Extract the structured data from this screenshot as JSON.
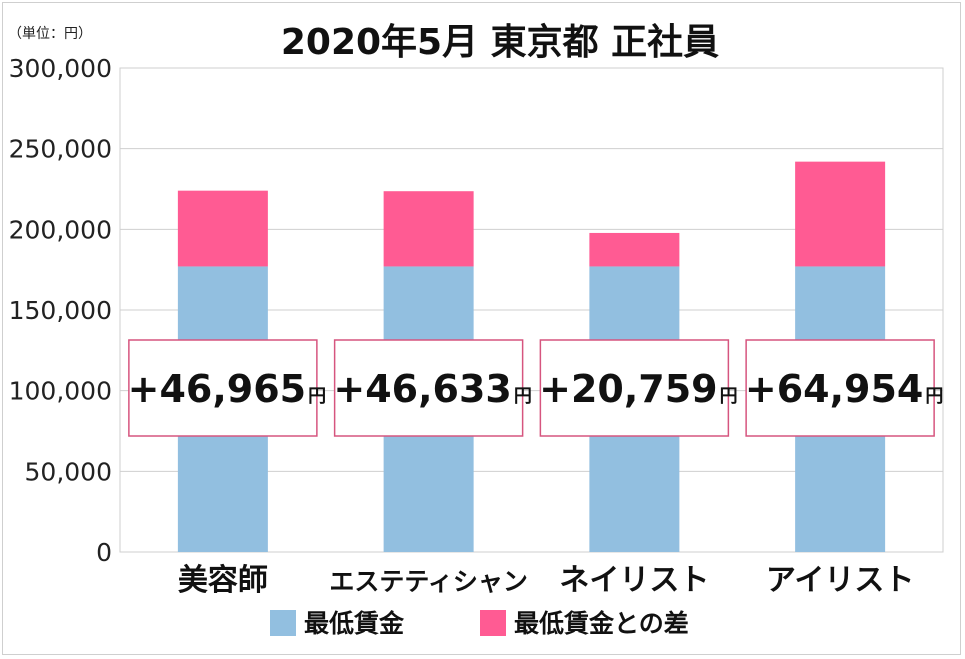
{
  "chart_data": {
    "type": "bar",
    "stacked": true,
    "title": "2020年5月 東京都 正社員",
    "unit_label": "（単位：円）",
    "categories": [
      "美容師",
      "エステティシャン",
      "ネイリスト",
      "アイリスト"
    ],
    "series": [
      {
        "name": "最低賃金",
        "values": [
          177000,
          177000,
          177000,
          177000
        ],
        "color": "#92bfe0"
      },
      {
        "name": "最低賃金との差",
        "values": [
          46965,
          46633,
          20759,
          64954
        ],
        "color": "#ff5b93"
      }
    ],
    "callouts": [
      "+46,965",
      "+46,633",
      "+20,759",
      "+64,954"
    ],
    "callout_unit": "円",
    "ylim": [
      0,
      300000
    ],
    "yticks": [
      0,
      50000,
      100000,
      150000,
      200000,
      250000,
      300000
    ],
    "ytick_labels": [
      "0",
      "50,000",
      "100,000",
      "150,000",
      "200,000",
      "250,000",
      "300,000"
    ],
    "grid": true,
    "legend_position": "bottom"
  }
}
